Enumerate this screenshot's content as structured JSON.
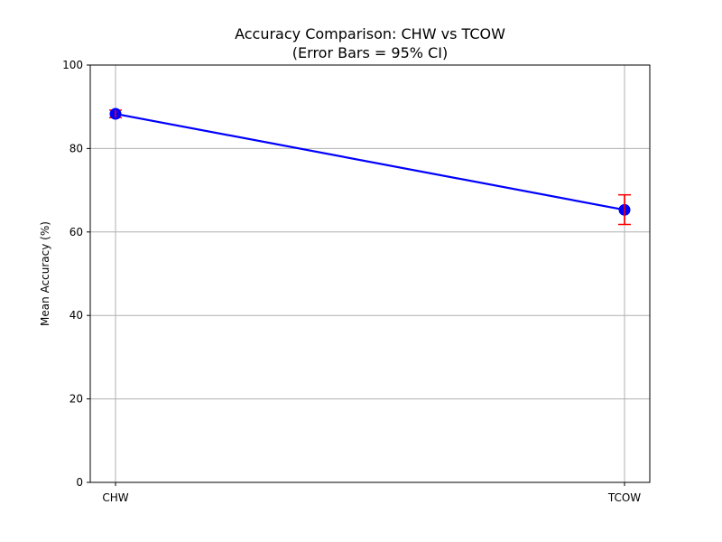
{
  "chart_data": {
    "type": "line",
    "title": "Accuracy Comparison: CHW vs TCOW",
    "subtitle": "(Error Bars = 95% CI)",
    "xlabel": "",
    "ylabel": "Mean Accuracy (%)",
    "categories": [
      "CHW",
      "TCOW"
    ],
    "ylim": [
      0,
      100
    ],
    "yticks": [
      0,
      20,
      40,
      60,
      80,
      100
    ],
    "grid": true,
    "series": [
      {
        "values": [
          88.3,
          65.3
        ],
        "ci_low": [
          87.4,
          61.8
        ],
        "ci_high": [
          89.2,
          68.9
        ],
        "line_color": "#0000ff",
        "marker_color": "#0000ff",
        "errorbar_color": "#ff0000"
      }
    ]
  }
}
